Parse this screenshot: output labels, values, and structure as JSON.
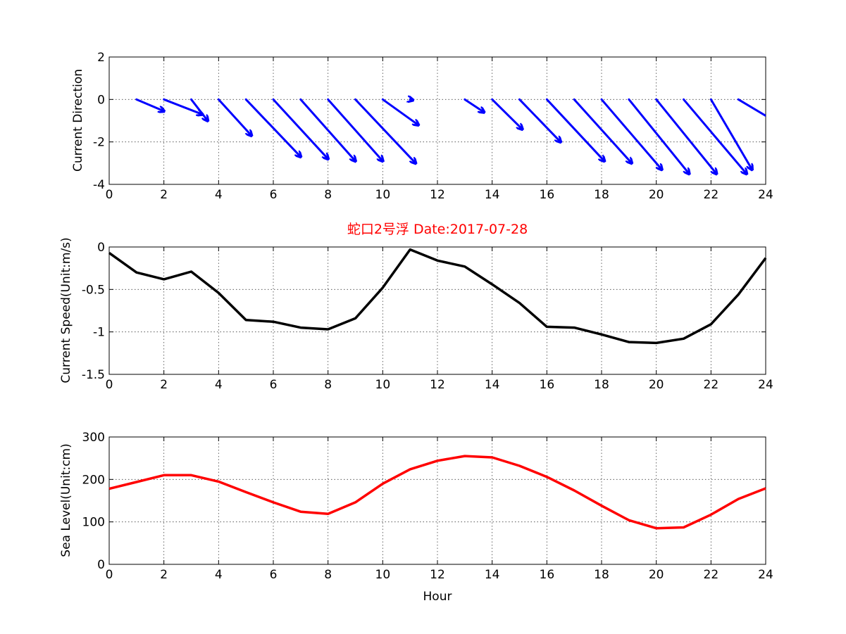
{
  "colors": {
    "direction": "#0000ff",
    "speed": "#000000",
    "sealevel": "#ff0000",
    "title": "#ff0000"
  },
  "figure_title": "蛇口2号浮   Date:2017-07-28",
  "chart_data": [
    {
      "type": "quiver",
      "ylabel": "Current Direction",
      "xlabel": "",
      "xlim": [
        0,
        24
      ],
      "ylim": [
        -4,
        2
      ],
      "xticks": [
        0,
        2,
        4,
        6,
        8,
        10,
        12,
        14,
        16,
        18,
        20,
        22,
        24
      ],
      "yticks": [
        2,
        0,
        -2,
        -4
      ],
      "grid": true,
      "arrows": [
        {
          "x": 1,
          "y": 0,
          "u": 1.0,
          "v": -0.55
        },
        {
          "x": 2,
          "y": 0,
          "u": 1.4,
          "v": -0.7
        },
        {
          "x": 3,
          "y": 0,
          "u": 0.6,
          "v": -1.0
        },
        {
          "x": 4,
          "y": 0,
          "u": 1.2,
          "v": -1.7
        },
        {
          "x": 5,
          "y": 0,
          "u": 2.0,
          "v": -2.7
        },
        {
          "x": 6,
          "y": 0,
          "u": 2.0,
          "v": -2.8
        },
        {
          "x": 7,
          "y": 0,
          "u": 2.0,
          "v": -2.9
        },
        {
          "x": 8,
          "y": 0,
          "u": 2.0,
          "v": -2.9
        },
        {
          "x": 9,
          "y": 0,
          "u": 2.2,
          "v": -3.0
        },
        {
          "x": 10,
          "y": 0,
          "u": 1.3,
          "v": -1.2
        },
        {
          "x": 11,
          "y": 0,
          "u": 0.1,
          "v": -0.03
        },
        {
          "x": 13,
          "y": 0,
          "u": 0.7,
          "v": -0.6
        },
        {
          "x": 14,
          "y": 0,
          "u": 1.1,
          "v": -1.4
        },
        {
          "x": 15,
          "y": 0,
          "u": 1.5,
          "v": -2.0
        },
        {
          "x": 16,
          "y": 0,
          "u": 2.1,
          "v": -2.9
        },
        {
          "x": 17,
          "y": 0,
          "u": 2.1,
          "v": -3.0
        },
        {
          "x": 18,
          "y": 0,
          "u": 2.2,
          "v": -3.3
        },
        {
          "x": 19,
          "y": 0,
          "u": 2.2,
          "v": -3.5
        },
        {
          "x": 20,
          "y": 0,
          "u": 2.2,
          "v": -3.5
        },
        {
          "x": 21,
          "y": 0,
          "u": 2.3,
          "v": -3.5
        },
        {
          "x": 22,
          "y": 0,
          "u": 1.5,
          "v": -3.3
        },
        {
          "x": 23,
          "y": 0,
          "u": 1.3,
          "v": -1.0
        }
      ]
    },
    {
      "type": "line",
      "ylabel": "Current Speed(Unit:m/s)",
      "xlabel": "",
      "xlim": [
        0,
        24
      ],
      "ylim": [
        -1.5,
        0
      ],
      "xticks": [
        0,
        2,
        4,
        6,
        8,
        10,
        12,
        14,
        16,
        18,
        20,
        22,
        24
      ],
      "yticks": [
        0,
        -0.5,
        -1,
        -1.5
      ],
      "grid": true,
      "x": [
        0,
        1,
        2,
        3,
        4,
        5,
        6,
        7,
        8,
        9,
        10,
        11,
        12,
        13,
        14,
        15,
        16,
        17,
        18,
        19,
        20,
        21,
        22,
        23,
        24
      ],
      "values": [
        -0.07,
        -0.3,
        -0.38,
        -0.29,
        -0.54,
        -0.86,
        -0.88,
        -0.95,
        -0.97,
        -0.84,
        -0.48,
        -0.03,
        -0.16,
        -0.23,
        -0.44,
        -0.66,
        -0.94,
        -0.95,
        -1.03,
        -1.12,
        -1.13,
        -1.08,
        -0.91,
        -0.56,
        -0.13
      ]
    },
    {
      "type": "line",
      "ylabel": "Sea Level(Unit:cm)",
      "xlabel": "Hour",
      "xlim": [
        0,
        24
      ],
      "ylim": [
        0,
        300
      ],
      "xticks": [
        0,
        2,
        4,
        6,
        8,
        10,
        12,
        14,
        16,
        18,
        20,
        22,
        24
      ],
      "yticks": [
        300,
        200,
        100,
        0
      ],
      "grid": true,
      "x": [
        0,
        1,
        2,
        3,
        4,
        5,
        6,
        7,
        8,
        9,
        10,
        11,
        12,
        13,
        14,
        15,
        16,
        17,
        18,
        19,
        20,
        21,
        22,
        23,
        24
      ],
      "values": [
        178,
        194,
        210,
        210,
        195,
        170,
        146,
        124,
        119,
        146,
        190,
        224,
        244,
        255,
        252,
        232,
        206,
        174,
        138,
        104,
        85,
        87,
        117,
        154,
        179
      ]
    }
  ]
}
